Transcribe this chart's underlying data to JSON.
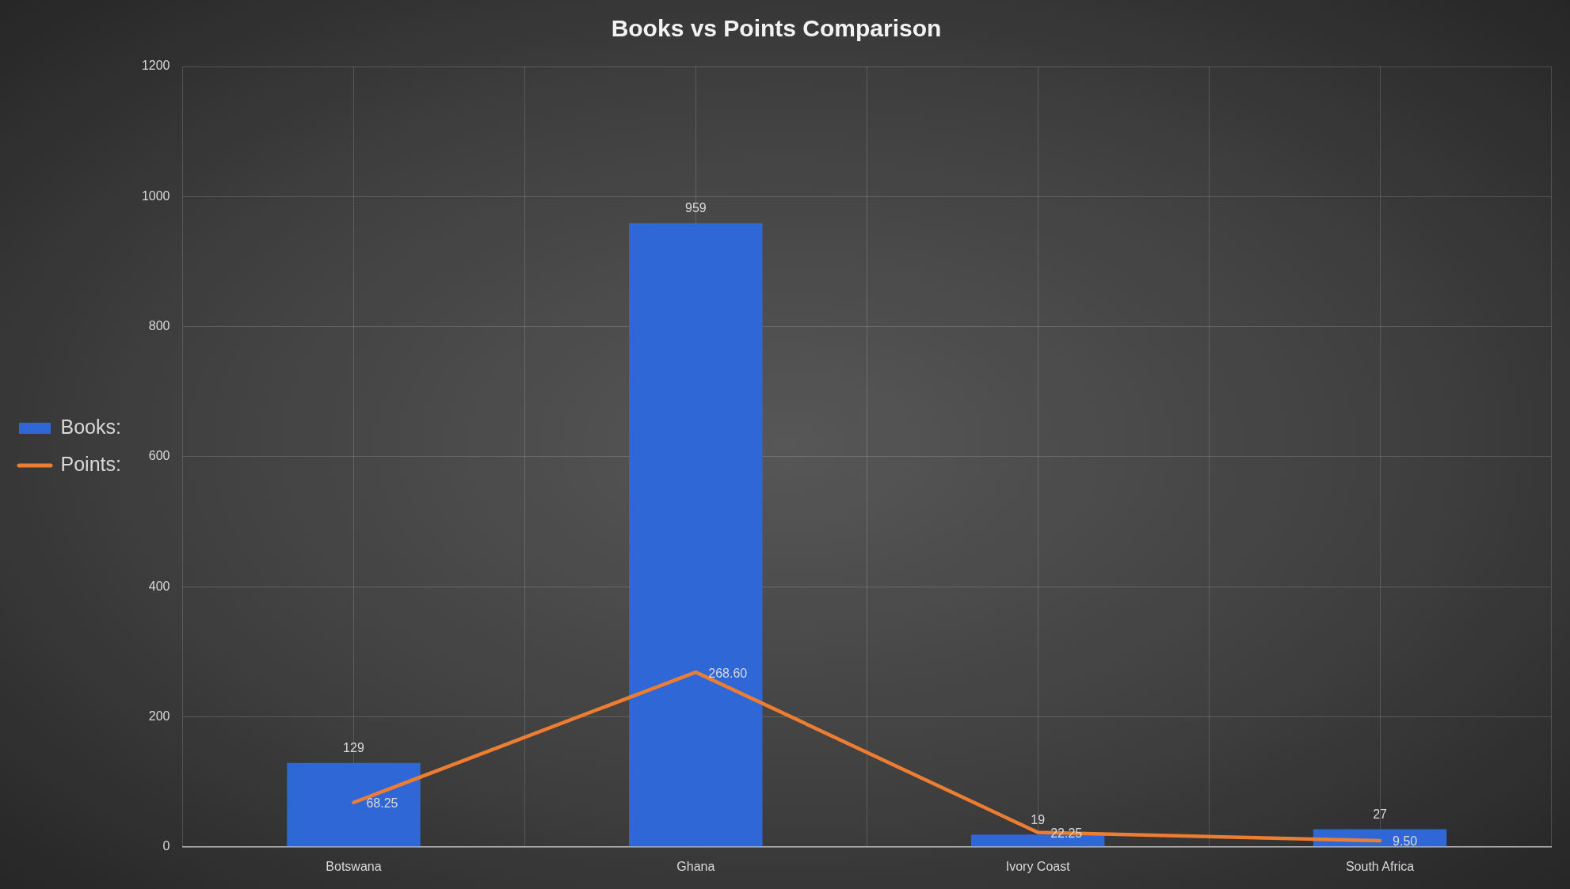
{
  "chart_data": {
    "type": "bar",
    "title": "Books vs Points Comparison",
    "categories": [
      "Botswana",
      "Ghana",
      "Ivory Coast",
      "South Africa"
    ],
    "series": [
      {
        "name": "Books:",
        "color": "#2f68d6",
        "values": [
          129,
          959,
          19,
          27
        ],
        "value_labels": [
          "129",
          "959",
          "19",
          "27"
        ]
      },
      {
        "name": "Points:",
        "type": "line",
        "color": "#ed7d31",
        "values": [
          68.25,
          268.6,
          22.25,
          9.5
        ],
        "value_labels": [
          "68.25",
          "268.60",
          "22.25",
          "9.50"
        ]
      }
    ],
    "ylim": [
      0,
      1200
    ],
    "yticks": [
      0,
      200,
      400,
      600,
      800,
      1000,
      1200
    ],
    "grid": true,
    "legend": "left",
    "marker": "none"
  }
}
